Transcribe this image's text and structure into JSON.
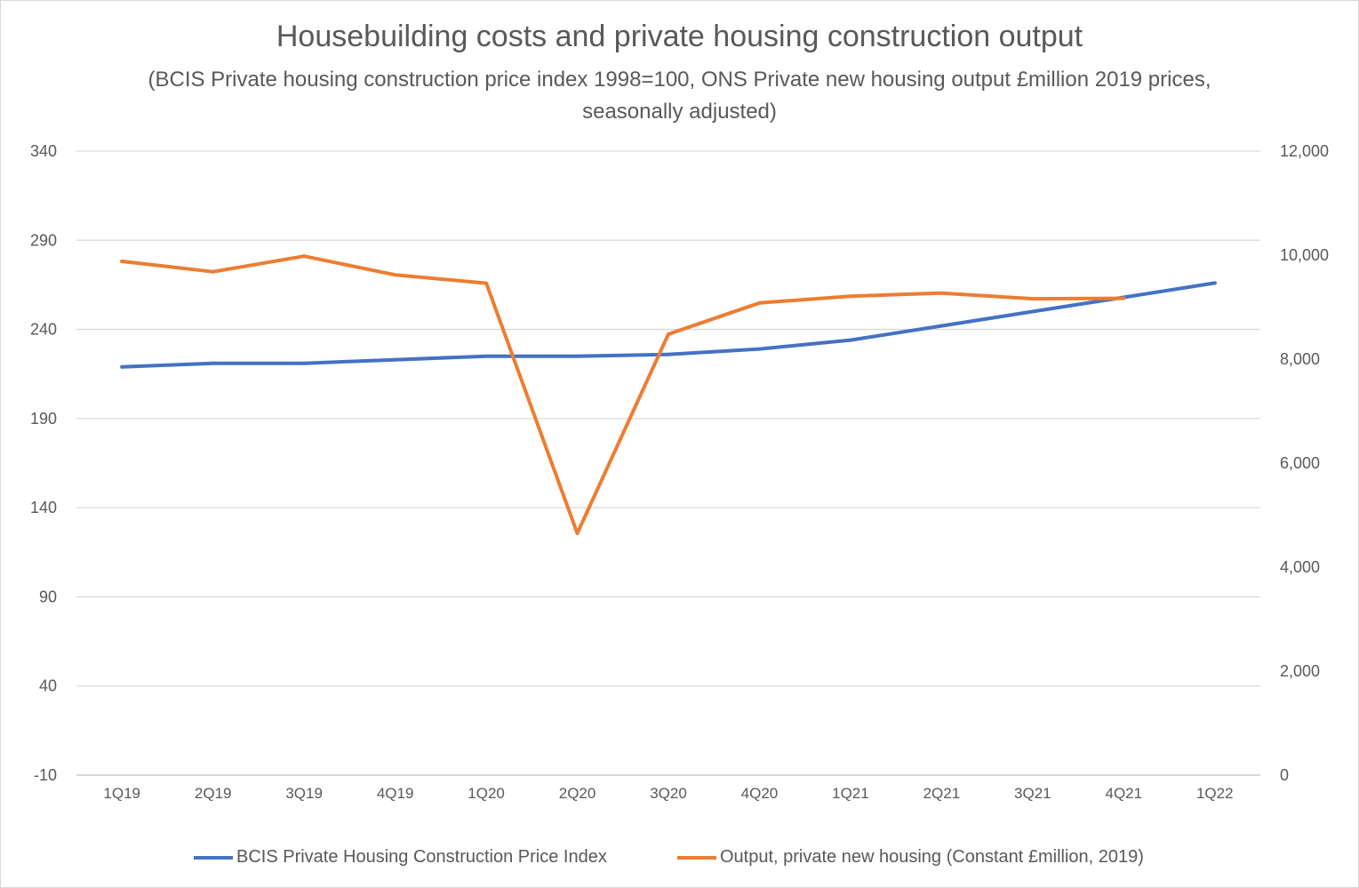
{
  "chart_data": {
    "type": "line",
    "title": "Housebuilding costs and private housing construction output",
    "subtitle": "(BCIS Private housing construction price index 1998=100, ONS Private new housing output £million 2019 prices, seasonally adjusted)",
    "categories": [
      "1Q19",
      "2Q19",
      "3Q19",
      "4Q19",
      "1Q20",
      "2Q20",
      "3Q20",
      "4Q20",
      "1Q21",
      "2Q21",
      "3Q21",
      "4Q21",
      "1Q22"
    ],
    "y_left": {
      "ylim": [
        -10,
        340
      ],
      "ticks": [
        "340",
        "290",
        "240",
        "190",
        "140",
        "90",
        "40",
        "-10"
      ]
    },
    "y_right": {
      "ylim": [
        0,
        12000
      ],
      "ticks": [
        "12,000",
        "10,000",
        "8,000",
        "6,000",
        "4,000",
        "2,000",
        "0"
      ]
    },
    "grid": true,
    "legend_position": "bottom",
    "series": [
      {
        "name": "BCIS Private Housing Construction Price Index",
        "axis": "left",
        "color": "#4472c4",
        "values": [
          219,
          221,
          221,
          223,
          225,
          225,
          226,
          229,
          234,
          242,
          250,
          258,
          266
        ]
      },
      {
        "name": "Output, private new housing (Constant £million, 2019)",
        "axis": "right",
        "color": "#ed7d31",
        "values": [
          9880,
          9680,
          9980,
          9620,
          9460,
          4650,
          8480,
          9080,
          9210,
          9270,
          9160,
          9170,
          null
        ]
      }
    ]
  }
}
